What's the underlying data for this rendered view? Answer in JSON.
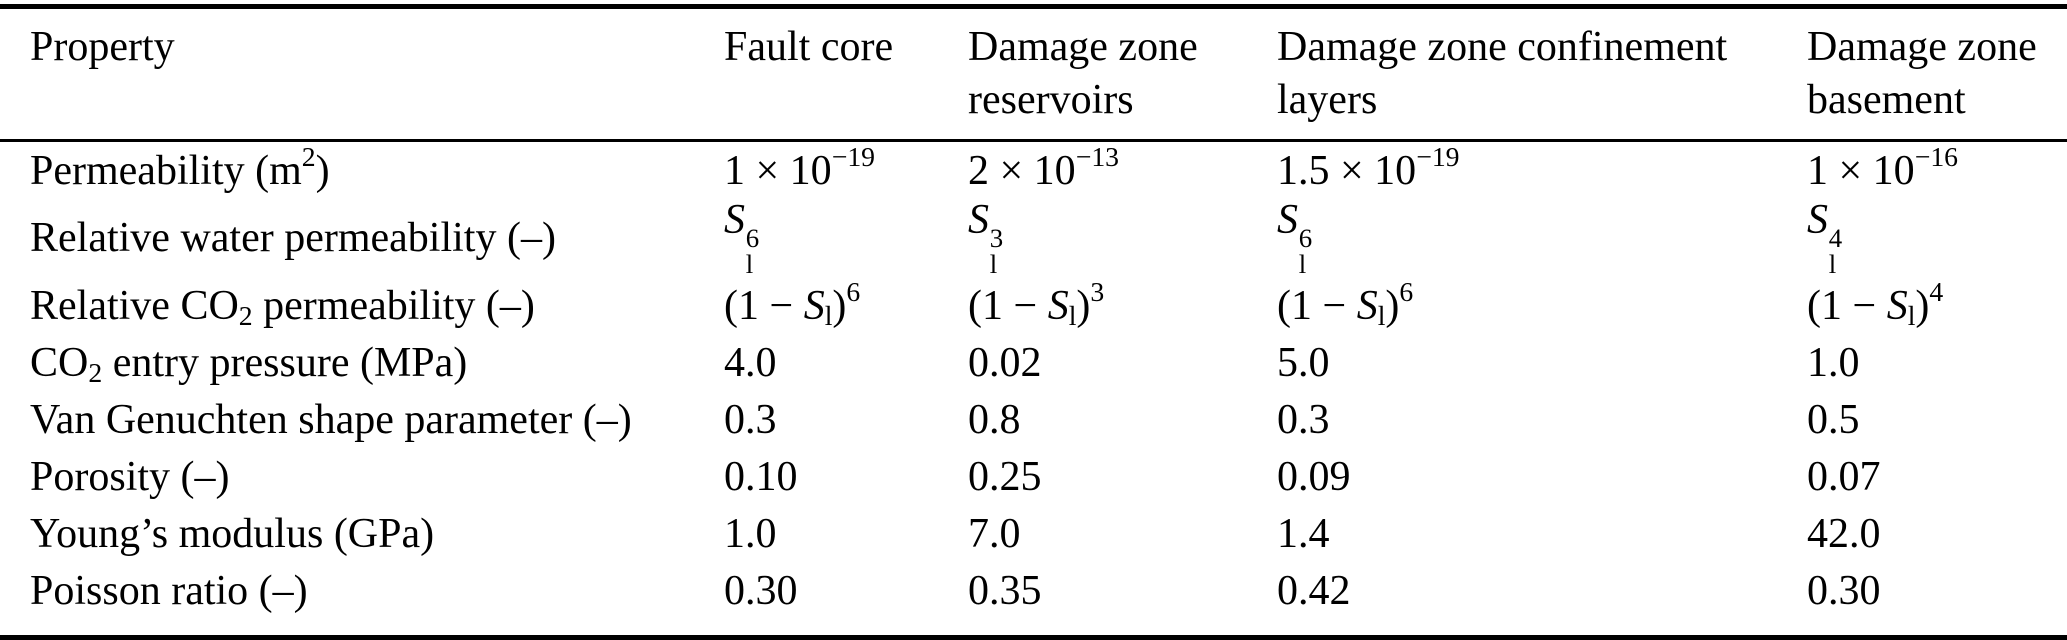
{
  "table": {
    "background_color": "#ffffff",
    "text_color": "#000000",
    "rule_color": "#000000",
    "columns": [
      {
        "label": "Property"
      },
      {
        "label": "Fault core"
      },
      {
        "label": "Damage zone reservoirs"
      },
      {
        "label": "Damage zone confinement layers"
      },
      {
        "label": "Damage zone basement"
      }
    ],
    "rows": [
      {
        "property": "Permeability (m^{2})",
        "values": [
          "1 × 10^{−19}",
          "2 × 10^{−13}",
          "1.5 × 10^{−19}",
          "1 × 10^{−16}"
        ]
      },
      {
        "property": "Relative water permeability (–)",
        "values": [
          "*S*_{l}^{6}",
          "*S*_{l}^{3}",
          "*S*_{l}^{6}",
          "*S*_{l}^{4}"
        ]
      },
      {
        "property": "Relative CO_{2} permeability (–)",
        "values": [
          "(1 − *S*_{l})^{6}",
          "(1 − *S*_{l})^{3}",
          "(1 − *S*_{l})^{6}",
          "(1 − *S*_{l})^{4}"
        ]
      },
      {
        "property": "CO_{2} entry pressure (MPa)",
        "values": [
          "4.0",
          "0.02",
          "5.0",
          "1.0"
        ]
      },
      {
        "property": "Van Genuchten shape parameter (–)",
        "values": [
          "0.3",
          "0.8",
          "0.3",
          "0.5"
        ]
      },
      {
        "property": "Porosity (–)",
        "values": [
          "0.10",
          "0.25",
          "0.09",
          "0.07"
        ]
      },
      {
        "property": "Young’s modulus (GPa)",
        "values": [
          "1.0",
          "7.0",
          "1.4",
          "42.0"
        ]
      },
      {
        "property": "Poisson ratio (–)",
        "values": [
          "0.30",
          "0.35",
          "0.42",
          "0.30"
        ]
      }
    ]
  }
}
